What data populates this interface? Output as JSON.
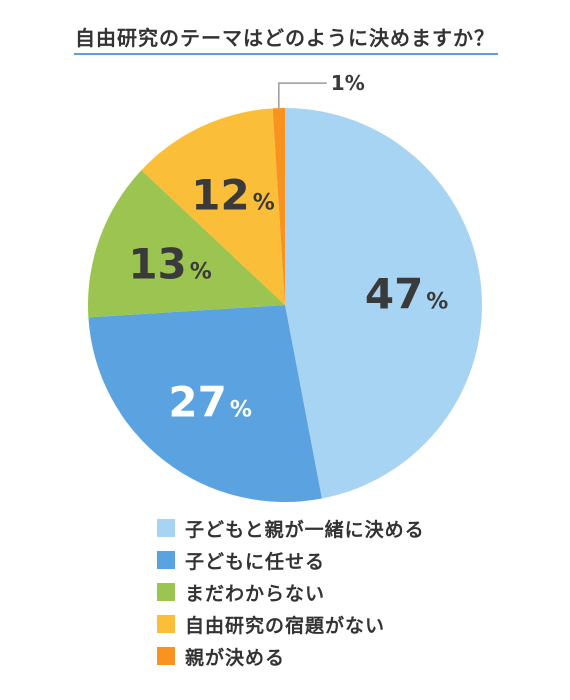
{
  "title": "自由研究のテーマはどのように決めますか？",
  "colors": {
    "title_underline": "#5aa0dc",
    "text": "#3a3a3a",
    "leader_line": "#999999"
  },
  "chart_data": {
    "type": "pie",
    "title": "自由研究のテーマはどのように決めますか？",
    "start_angle": "12 o'clock",
    "direction": "clockwise",
    "unit": "%",
    "slices": [
      {
        "label": "子どもと親が一緒に決める",
        "value": 47,
        "display": "47",
        "color": "#a8d4f3",
        "label_color": "#3a3a3a"
      },
      {
        "label": "子どもに任せる",
        "value": 27,
        "display": "27",
        "color": "#5ba3e0",
        "label_color": "#ffffff"
      },
      {
        "label": "まだわからない",
        "value": 13,
        "display": "13",
        "color": "#9bc450",
        "label_color": "#3a3a3a"
      },
      {
        "label": "自由研究の宿題がない",
        "value": 12,
        "display": "12",
        "color": "#fbbe38",
        "label_color": "#3a3a3a"
      },
      {
        "label": "親が決める",
        "value": 1,
        "display": "1",
        "color": "#f7931e",
        "label_color": "#3a3a3a",
        "outside_label": true
      }
    ],
    "legend_position": "bottom"
  }
}
